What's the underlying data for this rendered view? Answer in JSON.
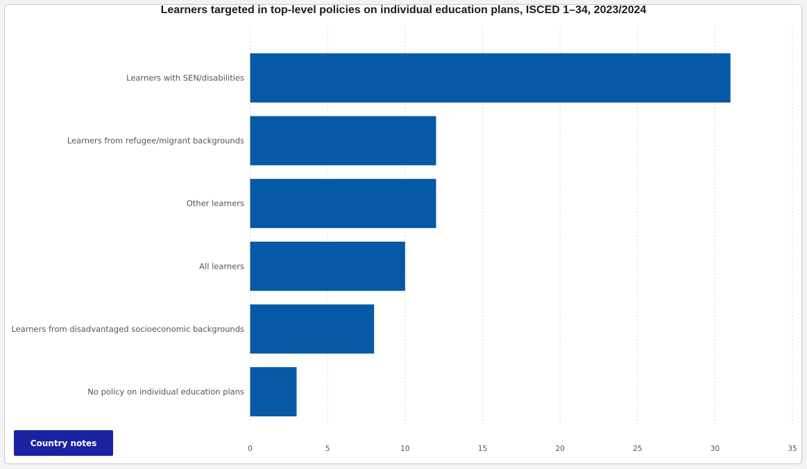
{
  "chart_data": {
    "type": "bar",
    "orientation": "horizontal",
    "title": "Learners targeted in top-level policies on individual education plans, ISCED 1–34, 2023/2024",
    "categories": [
      "Learners with SEN/disabilities",
      "Learners from refugee/migrant backgrounds",
      "Other learners",
      "All learners",
      "Learners from disadvantaged socioeconomic backgrounds",
      "No policy on individual education plans"
    ],
    "values": [
      31,
      12,
      12,
      10,
      8,
      3
    ],
    "xlim": [
      0,
      35
    ],
    "xticks": [
      "0",
      "5",
      "10",
      "15",
      "20",
      "25",
      "30",
      "35"
    ],
    "grid": "vertical dotted",
    "bar_color": "#0559a6"
  },
  "button": {
    "label": "Country notes",
    "color": "#1a22a2"
  }
}
